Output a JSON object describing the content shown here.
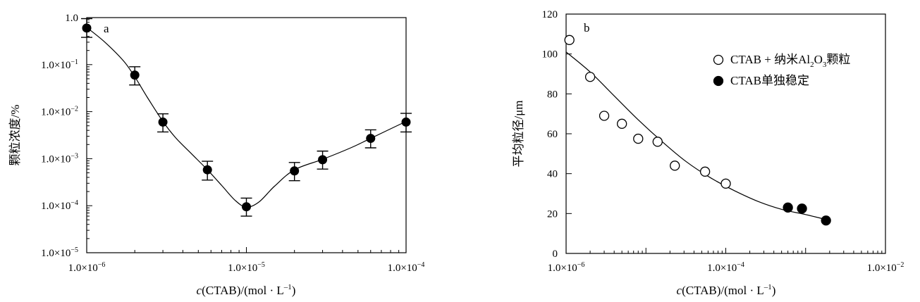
{
  "chart_data": [
    {
      "panel": "a",
      "type": "line",
      "x_scale": "log",
      "y_scale": "log",
      "xlim": [
        1e-06,
        0.0001
      ],
      "ylim": [
        1e-05,
        1
      ],
      "xlabel": {
        "italic": "c",
        "rest": "(CTAB)/(mol · L",
        "sup": "–1",
        "end": ")"
      },
      "ylabel": "颗粒浓度/%",
      "x_ticks": [
        {
          "value": 1e-06,
          "mantissa": "1.0×10",
          "exp": "−6"
        },
        {
          "value": 1e-05,
          "mantissa": "1.0×10",
          "exp": "−5"
        },
        {
          "value": 0.0001,
          "mantissa": "1.0×10",
          "exp": "−4"
        }
      ],
      "y_ticks": [
        {
          "value": 1,
          "mantissa": "1.0",
          "exp": ""
        },
        {
          "value": 0.1,
          "mantissa": "1.0×10",
          "exp": "−1"
        },
        {
          "value": 0.01,
          "mantissa": "1.0×10",
          "exp": "−2"
        },
        {
          "value": 0.001,
          "mantissa": "1.0×10",
          "exp": "−3"
        },
        {
          "value": 0.0001,
          "mantissa": "1.0×10",
          "exp": "−4"
        },
        {
          "value": 1e-05,
          "mantissa": "1.0×10",
          "exp": "−5"
        }
      ],
      "series": [
        {
          "marker": "filled-circle",
          "points": [
            {
              "x": 1e-06,
              "y": 0.6,
              "y_lo": 0.38,
              "y_hi": 0.95
            },
            {
              "x": 2e-06,
              "y": 0.06,
              "y_lo": 0.037,
              "y_hi": 0.09
            },
            {
              "x": 3e-06,
              "y": 0.006,
              "y_lo": 0.0037,
              "y_hi": 0.009
            },
            {
              "x": 5.7e-06,
              "y": 0.00058,
              "y_lo": 0.00035,
              "y_hi": 0.00088
            },
            {
              "x": 1e-05,
              "y": 9.5e-05,
              "y_lo": 6e-05,
              "y_hi": 0.000145
            },
            {
              "x": 2e-05,
              "y": 0.00055,
              "y_lo": 0.00034,
              "y_hi": 0.00083
            },
            {
              "x": 3e-05,
              "y": 0.00095,
              "y_lo": 0.0006,
              "y_hi": 0.00145
            },
            {
              "x": 6e-05,
              "y": 0.0027,
              "y_lo": 0.0017,
              "y_hi": 0.0041
            },
            {
              "x": 0.0001,
              "y": 0.006,
              "y_lo": 0.0037,
              "y_hi": 0.0092
            }
          ]
        }
      ],
      "fit_curve": [
        {
          "x": 1e-06,
          "y": 0.62
        },
        {
          "x": 1.3e-06,
          "y": 0.3
        },
        {
          "x": 1.7e-06,
          "y": 0.12
        },
        {
          "x": 2e-06,
          "y": 0.055
        },
        {
          "x": 2.4e-06,
          "y": 0.02
        },
        {
          "x": 3e-06,
          "y": 0.0062
        },
        {
          "x": 3.6e-06,
          "y": 0.0028
        },
        {
          "x": 4.5e-06,
          "y": 0.0013
        },
        {
          "x": 5.7e-06,
          "y": 0.00058
        },
        {
          "x": 7e-06,
          "y": 0.00027
        },
        {
          "x": 8.5e-06,
          "y": 0.00013
        },
        {
          "x": 1e-05,
          "y": 9.3e-05
        },
        {
          "x": 1.2e-05,
          "y": 0.00012
        },
        {
          "x": 1.5e-05,
          "y": 0.00026
        },
        {
          "x": 2e-05,
          "y": 0.00058
        },
        {
          "x": 3e-05,
          "y": 0.00097
        },
        {
          "x": 4.5e-05,
          "y": 0.0017
        },
        {
          "x": 6e-05,
          "y": 0.0027
        },
        {
          "x": 0.0001,
          "y": 0.0062
        }
      ],
      "panel_label": "a",
      "grid": false
    },
    {
      "panel": "b",
      "type": "scatter",
      "x_scale": "log",
      "y_scale": "linear",
      "xlim": [
        1e-06,
        0.01
      ],
      "ylim": [
        0,
        120
      ],
      "xlabel": {
        "italic": "c",
        "rest": "(CTAB)/(mol · L",
        "sup": "–1",
        "end": ")"
      },
      "ylabel": "平均粒径/μm",
      "x_ticks": [
        {
          "value": 1e-06,
          "mantissa": "1.0×10",
          "exp": "−6"
        },
        {
          "value": 0.0001,
          "mantissa": "1.0×10",
          "exp": "−4"
        },
        {
          "value": 0.01,
          "mantissa": "1.0×10",
          "exp": "−2"
        }
      ],
      "y_ticks": [
        0,
        20,
        40,
        60,
        80,
        100,
        120
      ],
      "series": [
        {
          "name": "CTAB + 纳米Al2O3颗粒",
          "legend_parts": [
            "CTAB + 纳米Al",
            "2",
            "O",
            "3",
            "颗粒"
          ],
          "marker": "open-circle",
          "points": [
            {
              "x": 1.1e-06,
              "y": 107
            },
            {
              "x": 2e-06,
              "y": 88.5
            },
            {
              "x": 3e-06,
              "y": 69
            },
            {
              "x": 5e-06,
              "y": 65
            },
            {
              "x": 8e-06,
              "y": 57.5
            },
            {
              "x": 1.4e-05,
              "y": 56
            },
            {
              "x": 2.3e-05,
              "y": 44
            },
            {
              "x": 5.5e-05,
              "y": 41
            },
            {
              "x": 0.0001,
              "y": 35
            }
          ]
        },
        {
          "name": "CTAB单独稳定",
          "legend_parts": [
            "CTAB单独稳定"
          ],
          "marker": "filled-circle",
          "points": [
            {
              "x": 0.0006,
              "y": 23
            },
            {
              "x": 0.0009,
              "y": 22.5
            },
            {
              "x": 0.0018,
              "y": 16.5
            }
          ]
        }
      ],
      "fit_curve": [
        {
          "x": 1e-06,
          "y": 101
        },
        {
          "x": 2e-06,
          "y": 91
        },
        {
          "x": 4e-06,
          "y": 79
        },
        {
          "x": 8e-06,
          "y": 67
        },
        {
          "x": 1.6e-05,
          "y": 56
        },
        {
          "x": 3.2e-05,
          "y": 46
        },
        {
          "x": 6.4e-05,
          "y": 38
        },
        {
          "x": 0.000128,
          "y": 31.5
        },
        {
          "x": 0.000256,
          "y": 26
        },
        {
          "x": 0.000512,
          "y": 22
        },
        {
          "x": 0.001,
          "y": 19.5
        },
        {
          "x": 0.0018,
          "y": 17
        }
      ],
      "panel_label": "b",
      "legend_position": "top-right",
      "grid": false
    }
  ]
}
